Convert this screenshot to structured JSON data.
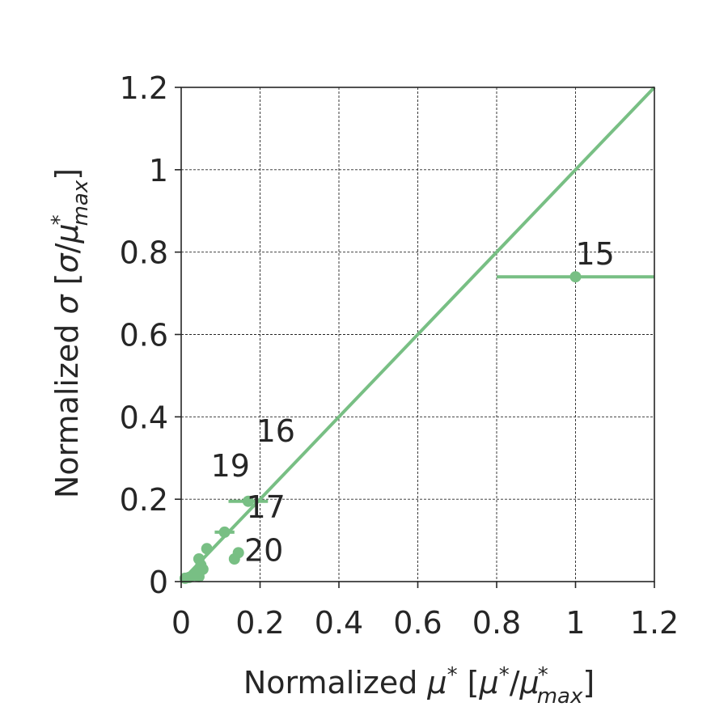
{
  "chart_data": {
    "type": "scatter",
    "xlabel": "Normalized μ* [μ*/μ*max]",
    "ylabel": "Normalized σ [σ/μ*max]",
    "xlim": [
      0,
      1.2
    ],
    "ylim": [
      0,
      1.2
    ],
    "grid": true,
    "x_ticks": [
      0,
      0.2,
      0.4,
      0.6,
      0.8,
      1,
      1.2
    ],
    "x_tick_labels": [
      "0",
      "0.2",
      "0.4",
      "0.6",
      "0.8",
      "1",
      "1.2"
    ],
    "y_ticks": [
      0,
      0.2,
      0.4,
      0.6,
      0.8,
      1,
      1.2
    ],
    "y_tick_labels": [
      "0",
      "0.2",
      "0.4",
      "0.6",
      "0.8",
      "1",
      "1.2"
    ],
    "color": "#78bf84",
    "reference_line": {
      "x": [
        0,
        1.2
      ],
      "y": [
        0,
        1.2
      ]
    },
    "series": [
      {
        "points": [
          {
            "x": 1.0,
            "y": 0.74,
            "xerr": 0.2,
            "label": "15"
          },
          {
            "x": 0.17,
            "y": 0.195,
            "xerr": 0.05,
            "label": "17"
          },
          {
            "x": 0.11,
            "y": 0.12,
            "xerr": 0.025
          },
          {
            "x": 0.065,
            "y": 0.08,
            "xerr": 0.012
          },
          {
            "x": 0.045,
            "y": 0.055,
            "xerr": 0.008
          },
          {
            "x": 0.05,
            "y": 0.04
          },
          {
            "x": 0.055,
            "y": 0.03
          },
          {
            "x": 0.04,
            "y": 0.02
          },
          {
            "x": 0.045,
            "y": 0.012
          },
          {
            "x": 0.03,
            "y": 0.015
          },
          {
            "x": 0.02,
            "y": 0.01
          },
          {
            "x": 0.01,
            "y": 0.008
          },
          {
            "x": 0.145,
            "y": 0.07,
            "xerr": 0.005
          },
          {
            "x": 0.135,
            "y": 0.055
          }
        ]
      }
    ],
    "annotations": [
      {
        "text": "15",
        "x": 1.0,
        "y": 0.77
      },
      {
        "text": "16",
        "x": 0.19,
        "y": 0.34
      },
      {
        "text": "19",
        "x": 0.075,
        "y": 0.255
      },
      {
        "text": "17",
        "x": 0.165,
        "y": 0.155
      },
      {
        "text": "20",
        "x": 0.16,
        "y": 0.05
      }
    ]
  }
}
